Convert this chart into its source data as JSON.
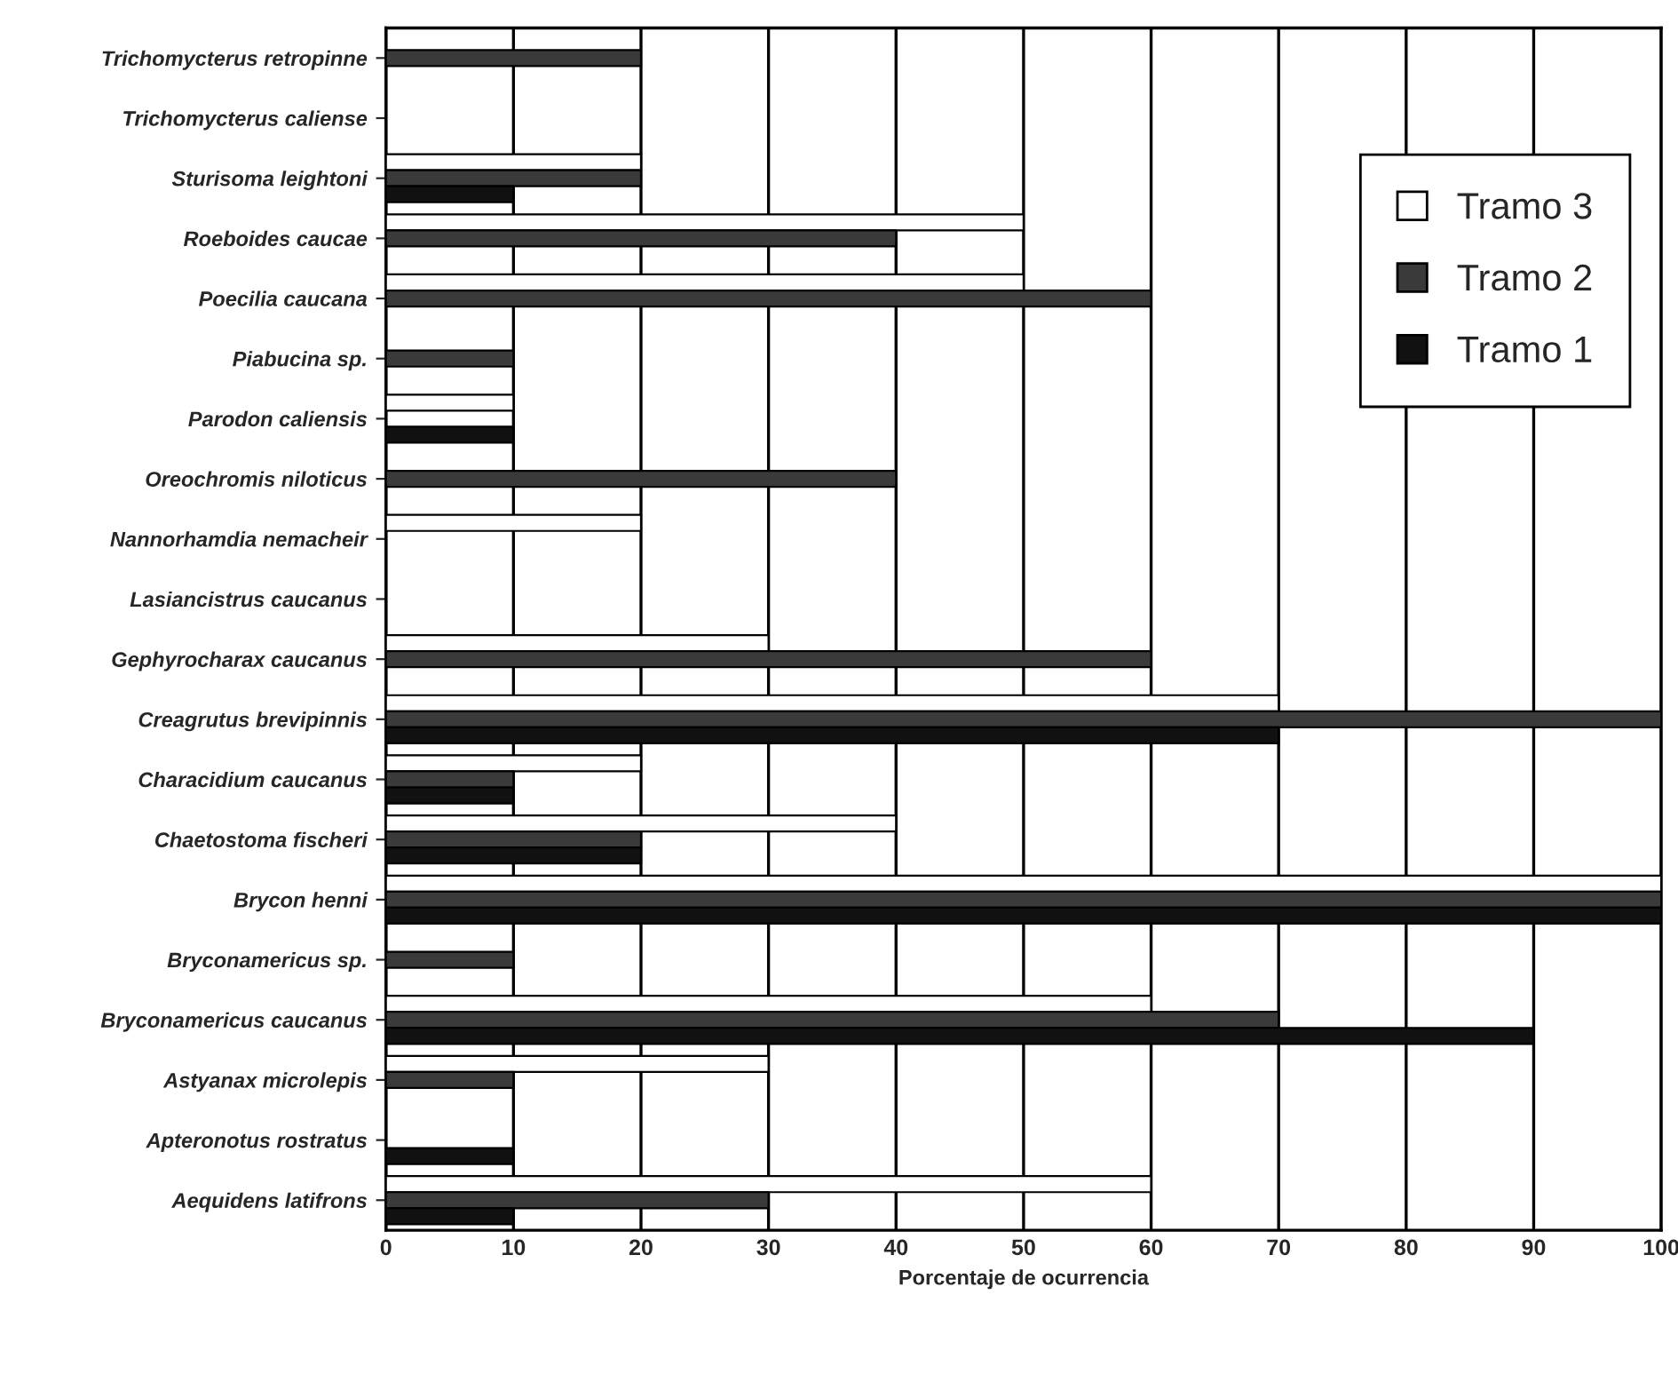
{
  "chart_data": {
    "type": "bar",
    "orientation": "horizontal",
    "xlabel": "Porcentaje de ocurrencia",
    "categories": [
      "Trichomycterus retropinne",
      "Trichomycterus caliense",
      "Sturisoma leightoni",
      "Roeboides caucae",
      "Poecilia caucana",
      "Piabucina sp.",
      "Parodon caliensis",
      "Oreochromis niloticus",
      "Nannorhamdia nemacheir",
      "Lasiancistrus caucanus",
      "Gephyrocharax caucanus",
      "Creagrutus brevipinnis",
      "Characidium caucanus",
      "Chaetostoma fischeri",
      "Brycon henni",
      "Bryconamericus sp.",
      "Bryconamericus caucanus",
      "Astyanax microlepis",
      "Apteronotus rostratus",
      "Aequidens latifrons"
    ],
    "series": [
      {
        "name": "Tramo 3",
        "color": "#ffffff",
        "values": [
          0,
          0,
          20,
          50,
          50,
          0,
          10,
          0,
          20,
          0,
          30,
          70,
          20,
          40,
          100,
          0,
          60,
          30,
          0,
          60
        ]
      },
      {
        "name": "Tramo 2",
        "color": "#3a3a3a",
        "values": [
          20,
          0,
          20,
          40,
          60,
          10,
          0,
          40,
          0,
          0,
          60,
          100,
          10,
          20,
          100,
          10,
          70,
          10,
          0,
          30
        ]
      },
      {
        "name": "Tramo 1",
        "color": "#111111",
        "values": [
          0,
          0,
          10,
          0,
          0,
          0,
          10,
          0,
          0,
          0,
          0,
          70,
          10,
          20,
          100,
          0,
          90,
          0,
          10,
          10
        ]
      }
    ],
    "xlim": [
      0,
      100
    ],
    "xticks": [
      0,
      10,
      20,
      30,
      40,
      50,
      60,
      70,
      80,
      90,
      100
    ],
    "grid": "x",
    "legend": "top right"
  }
}
